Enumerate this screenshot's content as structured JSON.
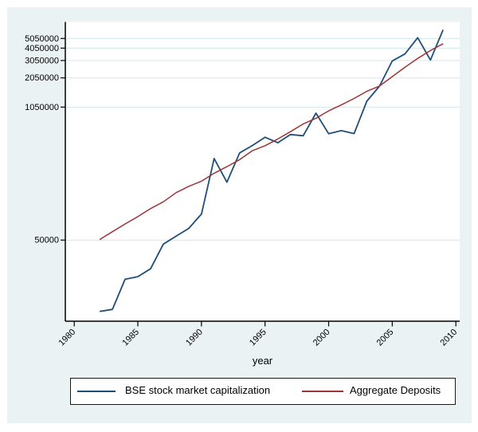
{
  "chart_data": {
    "type": "line",
    "xlabel": "year",
    "ylabel": "",
    "x": [
      1982,
      1983,
      1984,
      1985,
      1986,
      1987,
      1988,
      1989,
      1990,
      1991,
      1992,
      1993,
      1994,
      1995,
      1996,
      1997,
      1998,
      1999,
      2000,
      2001,
      2002,
      2003,
      2004,
      2005,
      2006,
      2007,
      2008,
      2009
    ],
    "series": [
      {
        "name": "BSE stock market capitalization",
        "color": "#1f4e79",
        "values": [
          9769,
          10219,
          20378,
          21636,
          25937,
          45519,
          54560,
          65206,
          90836,
          323363,
          188146,
          368071,
          435481,
          526476,
          463915,
          560325,
          545361,
          912842,
          571553,
          612224,
          572198,
          1201207,
          1698428,
          3022191,
          3545041,
          5138014,
          3086075,
          6165619
        ]
      },
      {
        "name": "Aggregate Deposits",
        "color": "#9d3436",
        "values": [
          50561,
          60596,
          72245,
          85500,
          102724,
          120000,
          147854,
          171000,
          192541,
          230758,
          268572,
          315132,
          386859,
          433819,
          505599,
          598485,
          714025,
          813345,
          962618,
          1103360,
          1280853,
          1504416,
          1700198,
          2109049,
          2611934,
          3196940,
          3834110,
          4486574
        ]
      }
    ],
    "x_ticks": [
      1980,
      1985,
      1990,
      1995,
      2000,
      2005,
      2010
    ],
    "y_ticks": [
      50000,
      1050000,
      2050000,
      3050000,
      4050000,
      5050000
    ],
    "y_scale": "log",
    "x_range": [
      1979.3,
      2010.3
    ],
    "y_range": [
      7800,
      7380000
    ],
    "grid": true,
    "legend_position": "bottom"
  },
  "colors": {
    "canvas_bg": "#eaf2f3",
    "plot_bg": "#ffffff",
    "gridline": "#d3e6ec",
    "axis": "#000000",
    "text": "#000000"
  }
}
